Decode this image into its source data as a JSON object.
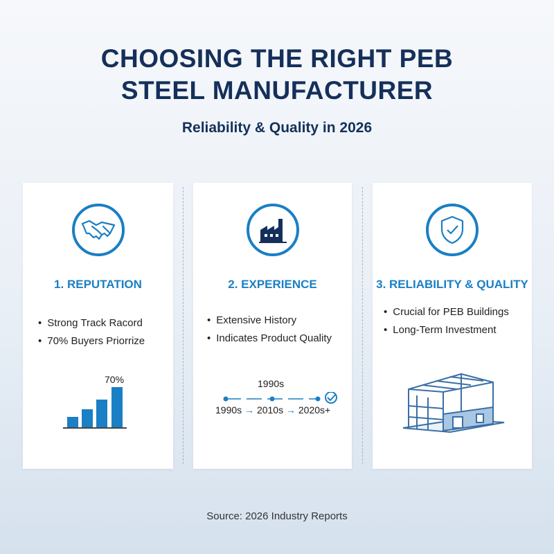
{
  "header": {
    "title_line1": "CHOOSING THE RIGHT PEB",
    "title_line2": "STEEL MANUFACTURER",
    "subtitle": "Reliability & Quality in 2026"
  },
  "cards": [
    {
      "icon": "handshake-icon",
      "title": "1. REPUTATION",
      "bullets": [
        "Strong Track Racord",
        "70% Buyers Priorrize"
      ],
      "bar_label": "70%"
    },
    {
      "icon": "factory-icon",
      "title": "2. EXPERIENCE",
      "bullets": [
        "Extensive History",
        "Indicates Product Quality"
      ],
      "timeline_top": "1990s",
      "timeline": [
        "1990s",
        "2010s",
        "2020s+"
      ],
      "arrow": "→"
    },
    {
      "icon": "shield-check-icon",
      "title": "3. RELIABILITY & QUALITY",
      "bullets": [
        "Crucial for PEB Buildings",
        "Long-Term Investment"
      ],
      "illustration": "steel-frame-building"
    }
  ],
  "footer": {
    "source": "Source: 2026 Industry Reports"
  },
  "colors": {
    "navy": "#14305a",
    "accent": "#1a7fc4"
  }
}
